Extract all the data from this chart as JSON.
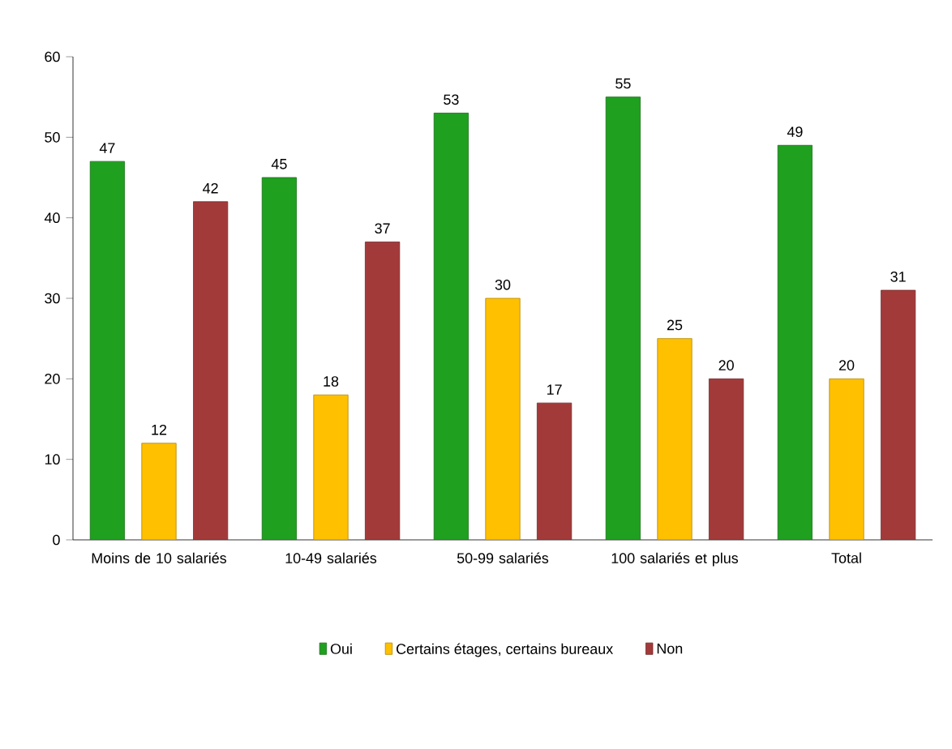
{
  "chart_data": {
    "type": "bar",
    "categories": [
      "Moins de 10 salariés",
      "10-49 salariés",
      "50-99 salariés",
      "100 salariés et plus",
      "Total"
    ],
    "series": [
      {
        "name": "Oui",
        "color": "#1fa01f",
        "values": [
          47,
          45,
          53,
          55,
          49
        ]
      },
      {
        "name": "Certains étages, certains bureaux",
        "color": "#ffc000",
        "values": [
          12,
          18,
          30,
          25,
          20
        ]
      },
      {
        "name": "Non",
        "color": "#a33a3a",
        "values": [
          42,
          37,
          17,
          20,
          31
        ]
      }
    ],
    "ylim": [
      0,
      60
    ],
    "yticks": [
      0,
      10,
      20,
      30,
      40,
      50,
      60
    ],
    "data_labels": true,
    "legend": "bottom",
    "grid": false
  }
}
